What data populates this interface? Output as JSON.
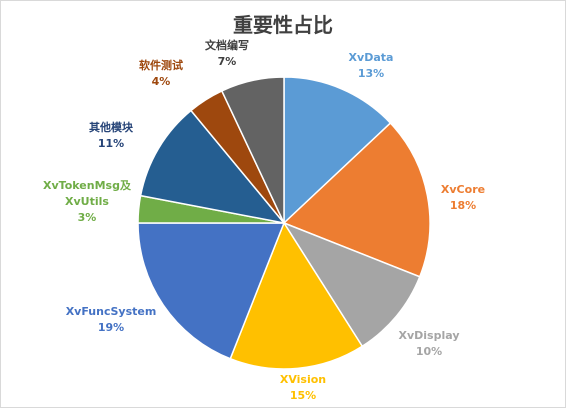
{
  "chart_data": {
    "type": "pie",
    "title": "重要性占比",
    "slices": [
      {
        "label_lines": [
          "XvData"
        ],
        "pct_label": "13%",
        "value": 13,
        "color": "#5B9BD5"
      },
      {
        "label_lines": [
          "XvCore"
        ],
        "pct_label": "18%",
        "value": 18,
        "color": "#ED7D31"
      },
      {
        "label_lines": [
          "XvDisplay"
        ],
        "pct_label": "10%",
        "value": 10,
        "color": "#A5A5A5"
      },
      {
        "label_lines": [
          "XVision"
        ],
        "pct_label": "15%",
        "value": 15,
        "color": "#FFC000"
      },
      {
        "label_lines": [
          "XvFuncSystem"
        ],
        "pct_label": "19%",
        "value": 19,
        "color": "#4472C4"
      },
      {
        "label_lines": [
          "XvTokenMsg及",
          "XvUtils"
        ],
        "pct_label": "3%",
        "value": 3,
        "color": "#70AD47"
      },
      {
        "label_lines": [
          "其他模块"
        ],
        "pct_label": "11%",
        "value": 11,
        "color": "#255E91"
      },
      {
        "label_lines": [
          "软件测试"
        ],
        "pct_label": "4%",
        "value": 4,
        "color": "#9E480E"
      },
      {
        "label_lines": [
          "文档编写"
        ],
        "pct_label": "7%",
        "value": 7,
        "color": "#636363"
      }
    ],
    "label_colors": [
      "#5B9BD5",
      "#ED7D31",
      "#A5A5A5",
      "#FFC000",
      "#4472C4",
      "#70AD47",
      "#264478",
      "#9E480E",
      "#404040"
    ]
  }
}
